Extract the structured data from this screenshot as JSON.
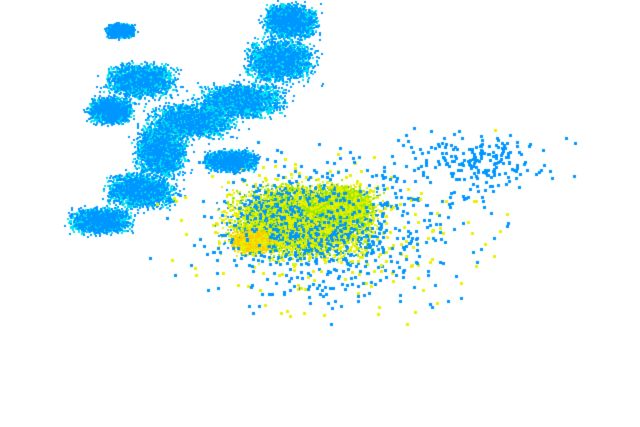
{
  "map": {
    "type": "radar-reflectivity",
    "background": "#ffffff",
    "palette": {
      "light": "#0096ff",
      "moderate": "#00e1f0",
      "heavy_low": "#9be600",
      "heavy": "#e6f000",
      "intense": "#ffc800"
    }
  }
}
